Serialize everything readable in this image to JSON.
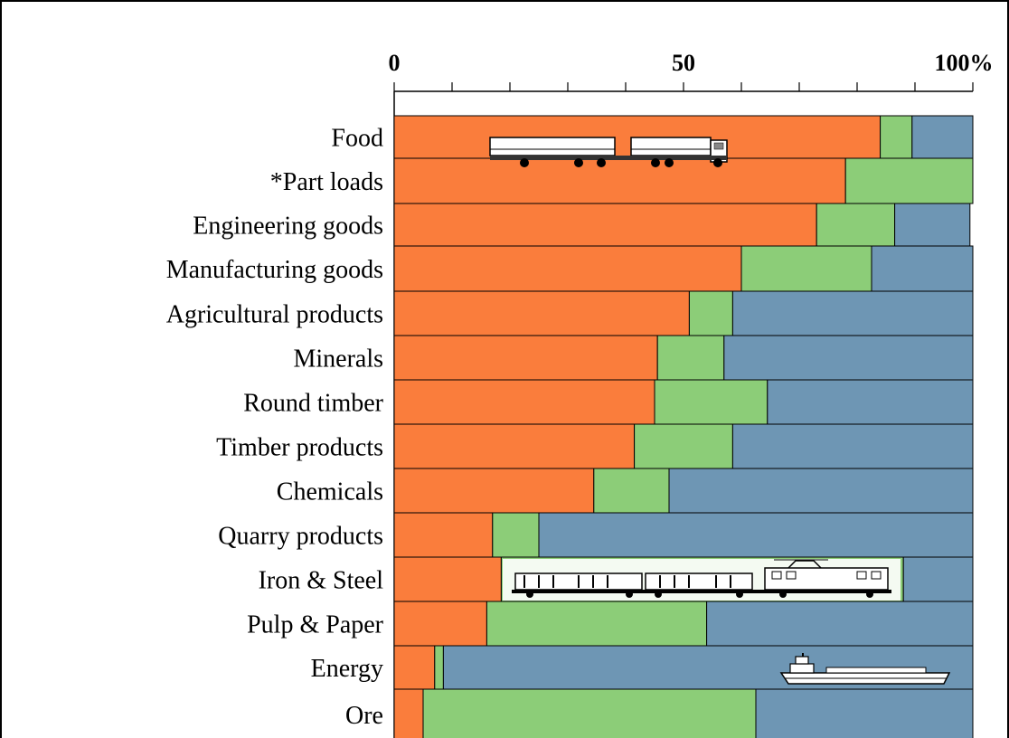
{
  "chart_data": {
    "type": "bar",
    "orientation": "horizontal",
    "stacked": true,
    "percent_stacked": true,
    "xlim": [
      0,
      100
    ],
    "tick_labels": [
      "0",
      "50",
      "100%"
    ],
    "grid": false,
    "legend": "none",
    "categories": [
      "Food",
      "*Part loads",
      "Engineering goods",
      "Manufacturing goods",
      "Agricultural products",
      "Minerals",
      "Round timber",
      "Timber products",
      "Chemicals",
      "Quarry products",
      "Iron & Steel",
      "Pulp & Paper",
      "Energy",
      "Ore"
    ],
    "series": [
      {
        "color": "#fa7d3c",
        "values": [
          84,
          78,
          73,
          60,
          51,
          45.5,
          45,
          41.5,
          34.5,
          17,
          18.5,
          16,
          7,
          5
        ]
      },
      {
        "color": "#8ccd78",
        "values": [
          5.5,
          22,
          13.5,
          22.5,
          7.5,
          11.5,
          19.5,
          17,
          13,
          8,
          69.5,
          38,
          1.5,
          57.5
        ]
      },
      {
        "color": "#6e96b4",
        "values": [
          10.5,
          0,
          13,
          17.5,
          41.5,
          43,
          35.5,
          41.5,
          52.5,
          75,
          12,
          46,
          91.5,
          37.5
        ]
      }
    ],
    "pictograms": [
      "truck-icon",
      "train-icon",
      "ship-icon"
    ]
  }
}
